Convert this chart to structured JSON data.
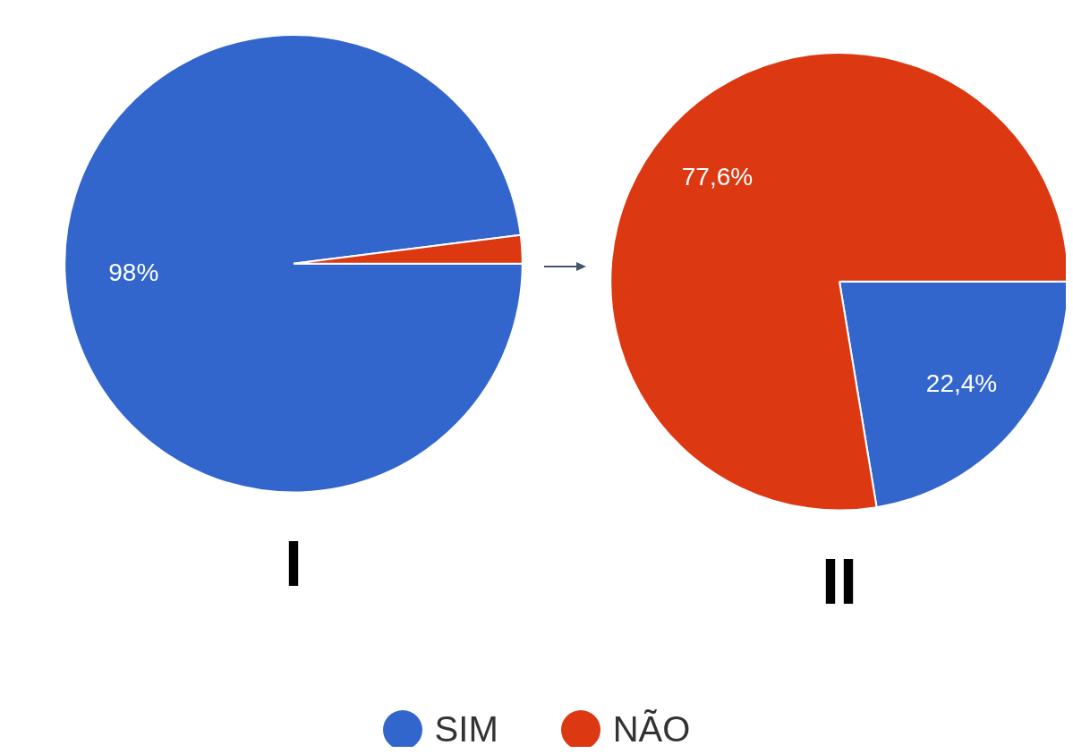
{
  "chart_data": [
    {
      "type": "pie",
      "title": "I",
      "categories": [
        "SIM",
        "NÃO"
      ],
      "values": [
        98,
        2
      ],
      "colors": [
        "#3366cc",
        "#dc3912"
      ],
      "value_labels": [
        "98%",
        null
      ],
      "legend": "bottom"
    },
    {
      "type": "pie",
      "title": "II",
      "categories": [
        null,
        null
      ],
      "values": [
        22.4,
        77.6
      ],
      "colors": [
        "#3366cc",
        "#dc3912"
      ],
      "value_labels": [
        "22,4%",
        "77,6%"
      ]
    }
  ]
}
